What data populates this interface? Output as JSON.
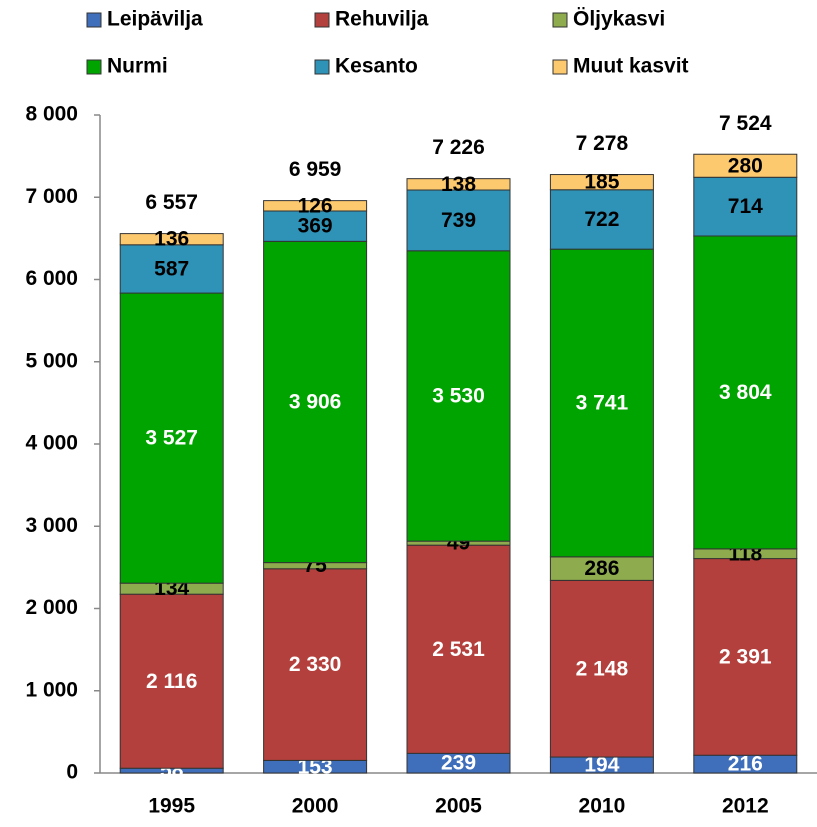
{
  "chart_data": {
    "type": "stacked_bar",
    "categories": [
      "1995",
      "2000",
      "2005",
      "2010",
      "2012"
    ],
    "series": [
      {
        "name": "Leipävilja",
        "color": "#3f6fba",
        "values": [
          58,
          153,
          239,
          194,
          216
        ]
      },
      {
        "name": "Rehuvilja",
        "color": "#b3403c",
        "values": [
          2116,
          2330,
          2531,
          2148,
          2391
        ],
        "value_labels": [
          "2 116",
          "2 330",
          "2 531",
          "2 148",
          "2 391"
        ]
      },
      {
        "name": "Öljykasvi",
        "color": "#8eab4e",
        "values": [
          134,
          75,
          49,
          286,
          118
        ]
      },
      {
        "name": "Nurmi",
        "color": "#00a400",
        "values": [
          3527,
          3906,
          3530,
          3741,
          3804
        ],
        "value_labels": [
          "3 527",
          "3 906",
          "3 530",
          "3 741",
          "3 804"
        ]
      },
      {
        "name": "Kesanto",
        "color": "#2f93b8",
        "values": [
          587,
          369,
          739,
          722,
          714
        ]
      },
      {
        "name": "Muut kasvit",
        "color": "#fdc96e",
        "values": [
          136,
          126,
          138,
          185,
          280
        ]
      }
    ],
    "totals": [
      6557,
      6959,
      7226,
      7278,
      7524
    ],
    "total_labels": [
      "6 557",
      "6 959",
      "7 226",
      "7 278",
      "7 524"
    ],
    "ylim": [
      0,
      8000
    ],
    "yticks": [
      0,
      {
        "value": 1000,
        "label": "1 000"
      },
      {
        "value": 2000,
        "label": "2 000"
      },
      {
        "value": 3000,
        "label": "3 000"
      },
      {
        "value": 4000,
        "label": "4 000"
      },
      {
        "value": 5000,
        "label": "5 000"
      },
      {
        "value": 6000,
        "label": "6 000"
      },
      {
        "value": 7000,
        "label": "7 000"
      },
      {
        "value": 8000,
        "label": "8 000"
      }
    ],
    "grid": false
  }
}
